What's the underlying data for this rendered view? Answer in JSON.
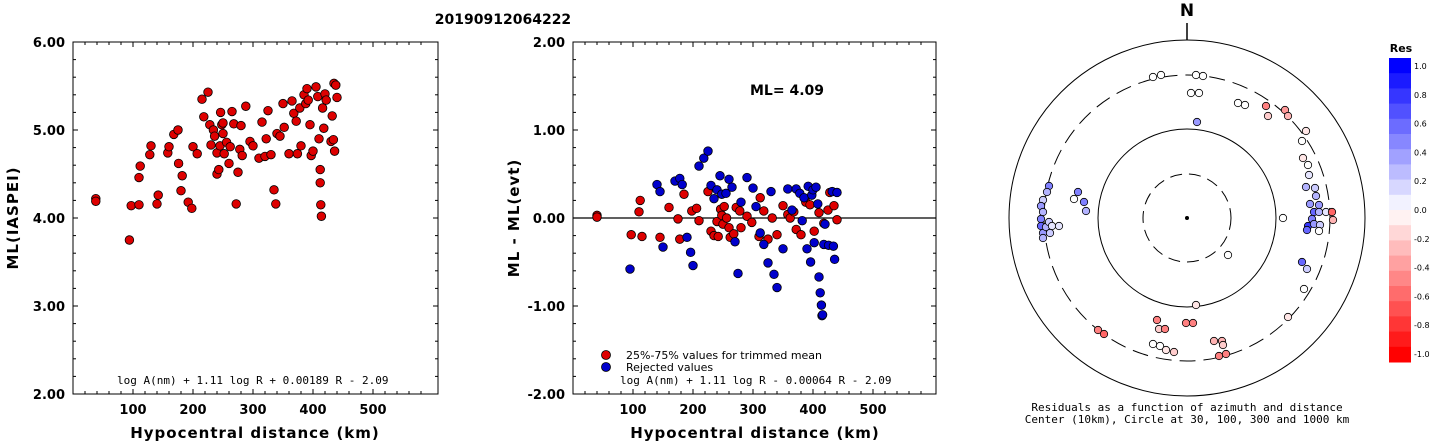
{
  "title": "20190912064222",
  "left_panel": {
    "ylabel": "ML(IASPEI)",
    "xlabel": "Hypocentral distance (km)",
    "formula": "log A(nm) + 1.11 log R + 0.00189 R - 2.09",
    "ytick_labels": [
      "6.00",
      "5.00",
      "4.00",
      "3.00",
      "2.00"
    ],
    "xtick_labels": [
      "100",
      "200",
      "300",
      "400",
      "500"
    ]
  },
  "mid_panel": {
    "ylabel": "ML - ML(evt)",
    "xlabel": "Hypocentral distance (km)",
    "ml_label": "ML= 4.09",
    "formula": "log A(nm) + 1.11 log R - 0.00064 R - 2.09",
    "legend_red": "25%-75% values for trimmed mean",
    "legend_blue": "Rejected values",
    "ytick_labels": [
      "2.00",
      "1.00",
      "0.00",
      "-1.00",
      "-2.00"
    ],
    "xtick_labels": [
      "100",
      "200",
      "300",
      "400",
      "500"
    ]
  },
  "polar_panel": {
    "north_label": "N",
    "caption_line1": "Residuals as a function of azimuth and distance",
    "caption_line2": "Center (10km), Circle at 30, 100, 300 and 1000 km",
    "colorbar_title": "Res",
    "colorbar_labels": [
      "1.0",
      "0.8",
      "0.6",
      "0.4",
      "0.2",
      "0.0",
      "-0.2",
      "-0.4",
      "-0.6",
      "-0.8",
      "-1.0"
    ]
  },
  "colors": {
    "red_marker": "#dd0000",
    "blue_marker": "#0000cc",
    "positive_res": "#0000ff",
    "negative_res": "#ff0000"
  },
  "chart_data": [
    {
      "type": "scatter",
      "title": "20190912064222",
      "xlabel": "Hypocentral distance (km)",
      "ylabel": "ML(IASPEI)",
      "xlim": [
        0,
        600
      ],
      "ylim": [
        2,
        6
      ],
      "points": [
        [
          38,
          4.22
        ],
        [
          38,
          4.19
        ],
        [
          94,
          3.75
        ],
        [
          97,
          4.14
        ],
        [
          110,
          4.15
        ],
        [
          110,
          4.46
        ],
        [
          112,
          4.59
        ],
        [
          128,
          4.72
        ],
        [
          130,
          4.82
        ],
        [
          140,
          4.16
        ],
        [
          142,
          4.26
        ],
        [
          158,
          4.74
        ],
        [
          160,
          4.81
        ],
        [
          168,
          4.95
        ],
        [
          175,
          5.0
        ],
        [
          176,
          4.62
        ],
        [
          180,
          4.31
        ],
        [
          182,
          4.48
        ],
        [
          192,
          4.18
        ],
        [
          198,
          4.11
        ],
        [
          200,
          4.81
        ],
        [
          207,
          4.73
        ],
        [
          215,
          5.35
        ],
        [
          218,
          5.15
        ],
        [
          225,
          5.43
        ],
        [
          228,
          5.06
        ],
        [
          230,
          4.83
        ],
        [
          234,
          5.0
        ],
        [
          236,
          4.93
        ],
        [
          240,
          4.74
        ],
        [
          240,
          4.5
        ],
        [
          243,
          4.55
        ],
        [
          245,
          4.82
        ],
        [
          246,
          5.2
        ],
        [
          248,
          5.06
        ],
        [
          250,
          5.08
        ],
        [
          250,
          4.96
        ],
        [
          252,
          4.73
        ],
        [
          256,
          4.86
        ],
        [
          260,
          4.62
        ],
        [
          262,
          4.81
        ],
        [
          265,
          5.21
        ],
        [
          268,
          5.07
        ],
        [
          272,
          4.16
        ],
        [
          275,
          4.52
        ],
        [
          278,
          4.78
        ],
        [
          280,
          5.05
        ],
        [
          282,
          4.71
        ],
        [
          288,
          5.27
        ],
        [
          295,
          4.87
        ],
        [
          300,
          4.82
        ],
        [
          310,
          4.68
        ],
        [
          315,
          5.09
        ],
        [
          320,
          4.7
        ],
        [
          322,
          4.9
        ],
        [
          325,
          5.22
        ],
        [
          330,
          4.72
        ],
        [
          335,
          4.32
        ],
        [
          338,
          4.16
        ],
        [
          340,
          4.96
        ],
        [
          345,
          4.93
        ],
        [
          350,
          5.3
        ],
        [
          352,
          5.03
        ],
        [
          360,
          4.73
        ],
        [
          365,
          5.33
        ],
        [
          368,
          5.19
        ],
        [
          372,
          5.1
        ],
        [
          374,
          4.73
        ],
        [
          378,
          5.25
        ],
        [
          380,
          4.82
        ],
        [
          385,
          5.4
        ],
        [
          388,
          5.3
        ],
        [
          390,
          5.47
        ],
        [
          392,
          5.34
        ],
        [
          395,
          5.06
        ],
        [
          397,
          4.71
        ],
        [
          400,
          4.76
        ],
        [
          405,
          5.49
        ],
        [
          408,
          5.38
        ],
        [
          410,
          4.9
        ],
        [
          412,
          4.55
        ],
        [
          412,
          4.4
        ],
        [
          413,
          4.15
        ],
        [
          414,
          4.02
        ],
        [
          416,
          5.25
        ],
        [
          418,
          5.02
        ],
        [
          420,
          5.41
        ],
        [
          422,
          5.34
        ],
        [
          430,
          4.87
        ],
        [
          432,
          5.16
        ],
        [
          434,
          4.89
        ],
        [
          435,
          5.53
        ],
        [
          436,
          4.76
        ],
        [
          438,
          5.51
        ],
        [
          440,
          5.37
        ]
      ]
    },
    {
      "type": "scatter",
      "title": "ML= 4.09",
      "xlabel": "Hypocentral distance (km)",
      "ylabel": "ML - ML(evt)",
      "xlim": [
        0,
        600
      ],
      "ylim": [
        -2,
        2
      ],
      "series": [
        {
          "name": "25%-75% values for trimmed mean",
          "points": [
            [
              40,
              0.03
            ],
            [
              40,
              0.01
            ],
            [
              97,
              -0.19
            ],
            [
              110,
              0.07
            ],
            [
              112,
              0.2
            ],
            [
              115,
              -0.21
            ],
            [
              145,
              -0.22
            ],
            [
              160,
              0.12
            ],
            [
              175,
              -0.01
            ],
            [
              178,
              -0.24
            ],
            [
              185,
              0.27
            ],
            [
              198,
              0.08
            ],
            [
              206,
              0.11
            ],
            [
              210,
              -0.03
            ],
            [
              225,
              0.3
            ],
            [
              230,
              -0.15
            ],
            [
              235,
              -0.2
            ],
            [
              240,
              -0.04
            ],
            [
              242,
              -0.21
            ],
            [
              246,
              0.1
            ],
            [
              248,
              0.03
            ],
            [
              250,
              -0.07
            ],
            [
              252,
              0.13
            ],
            [
              256,
              0.0
            ],
            [
              260,
              -0.11
            ],
            [
              262,
              -0.22
            ],
            [
              268,
              -0.18
            ],
            [
              272,
              0.12
            ],
            [
              278,
              0.08
            ],
            [
              280,
              -0.11
            ],
            [
              290,
              0.02
            ],
            [
              298,
              -0.05
            ],
            [
              310,
              -0.21
            ],
            [
              312,
              0.23
            ],
            [
              318,
              0.08
            ],
            [
              325,
              -0.24
            ],
            [
              332,
              0.0
            ],
            [
              340,
              -0.19
            ],
            [
              350,
              0.14
            ],
            [
              358,
              0.04
            ],
            [
              362,
              0.0
            ],
            [
              368,
              0.07
            ],
            [
              372,
              -0.13
            ],
            [
              380,
              -0.19
            ],
            [
              388,
              0.18
            ],
            [
              395,
              0.15
            ],
            [
              402,
              -0.15
            ],
            [
              410,
              0.06
            ],
            [
              418,
              -0.06
            ],
            [
              425,
              0.09
            ],
            [
              428,
              0.29
            ],
            [
              435,
              0.14
            ],
            [
              440,
              -0.02
            ]
          ]
        },
        {
          "name": "Rejected values",
          "points": [
            [
              95,
              -0.58
            ],
            [
              140,
              0.38
            ],
            [
              145,
              0.3
            ],
            [
              150,
              -0.33
            ],
            [
              170,
              0.42
            ],
            [
              178,
              0.45
            ],
            [
              182,
              0.38
            ],
            [
              190,
              -0.22
            ],
            [
              196,
              -0.39
            ],
            [
              200,
              -0.54
            ],
            [
              210,
              0.59
            ],
            [
              218,
              0.68
            ],
            [
              225,
              0.76
            ],
            [
              230,
              0.37
            ],
            [
              235,
              0.22
            ],
            [
              240,
              0.32
            ],
            [
              245,
              0.48
            ],
            [
              248,
              0.27
            ],
            [
              255,
              0.28
            ],
            [
              260,
              0.44
            ],
            [
              265,
              0.35
            ],
            [
              270,
              -0.27
            ],
            [
              275,
              -0.63
            ],
            [
              280,
              0.18
            ],
            [
              290,
              0.46
            ],
            [
              300,
              0.34
            ],
            [
              305,
              0.13
            ],
            [
              312,
              -0.17
            ],
            [
              318,
              -0.3
            ],
            [
              325,
              -0.51
            ],
            [
              330,
              0.3
            ],
            [
              335,
              -0.64
            ],
            [
              340,
              -0.79
            ],
            [
              350,
              -0.35
            ],
            [
              358,
              0.33
            ],
            [
              365,
              0.09
            ],
            [
              372,
              0.33
            ],
            [
              378,
              0.28
            ],
            [
              382,
              -0.03
            ],
            [
              385,
              0.23
            ],
            [
              390,
              -0.35
            ],
            [
              392,
              0.36
            ],
            [
              396,
              -0.5
            ],
            [
              398,
              0.26
            ],
            [
              400,
              0.32
            ],
            [
              402,
              -0.28
            ],
            [
              405,
              0.35
            ],
            [
              408,
              0.16
            ],
            [
              410,
              -0.67
            ],
            [
              412,
              -0.85
            ],
            [
              414,
              -0.99
            ],
            [
              415,
              -1.11
            ],
            [
              416,
              -1.1
            ],
            [
              418,
              -0.3
            ],
            [
              420,
              -0.07
            ],
            [
              426,
              -0.31
            ],
            [
              432,
              0.3
            ],
            [
              434,
              -0.32
            ],
            [
              436,
              -0.47
            ],
            [
              440,
              0.29
            ]
          ]
        }
      ]
    },
    {
      "type": "scatter",
      "title": "",
      "xlabel": "",
      "ylabel": "",
      "polar": true,
      "points_xy_px": []
    }
  ]
}
